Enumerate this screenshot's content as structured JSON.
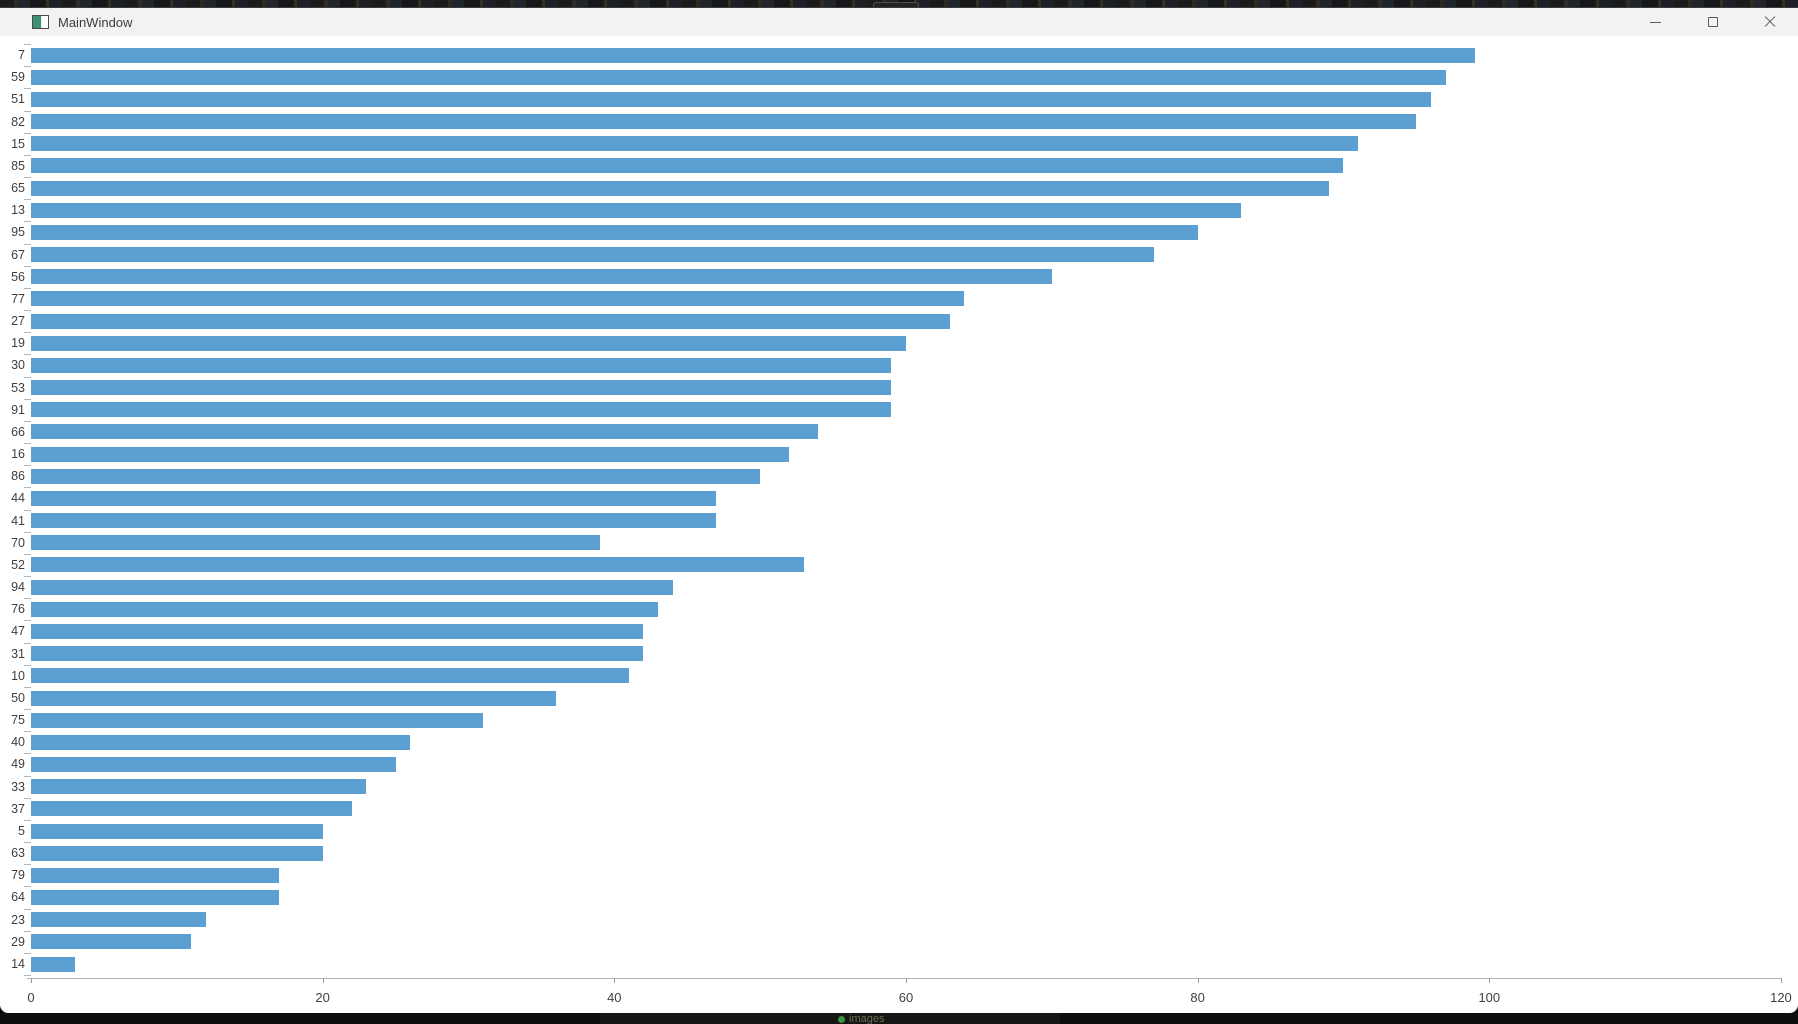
{
  "window": {
    "title": "MainWindow",
    "controls": {
      "minimize": "minimize",
      "maximize": "maximize",
      "close": "close"
    }
  },
  "taskbar": {
    "label": "images"
  },
  "colors": {
    "bar": "#5B9FD3",
    "titlebar_bg": "#F2F2F2",
    "chart_bg": "#FFFFFF",
    "axis": "#B5B5B5",
    "tick_label": "#3F3F3F"
  },
  "chart_data": {
    "type": "bar",
    "orientation": "horizontal",
    "title": "",
    "xlabel": "",
    "ylabel": "",
    "grid": false,
    "legend": null,
    "xlim": [
      0,
      120
    ],
    "x_ticks": [
      0,
      20,
      40,
      60,
      80,
      100,
      120
    ],
    "categories": [
      "7",
      "59",
      "51",
      "82",
      "15",
      "85",
      "65",
      "13",
      "95",
      "67",
      "56",
      "77",
      "27",
      "19",
      "30",
      "53",
      "91",
      "66",
      "16",
      "86",
      "44",
      "41",
      "70",
      "52",
      "94",
      "76",
      "47",
      "31",
      "10",
      "50",
      "75",
      "40",
      "49",
      "33",
      "37",
      "5",
      "63",
      "79",
      "64",
      "23",
      "29",
      "14"
    ],
    "values": [
      99,
      97,
      96,
      95,
      91,
      90,
      89,
      83,
      80,
      77,
      70,
      64,
      63,
      60,
      59,
      59,
      59,
      54,
      52,
      50,
      47,
      47,
      39,
      53,
      44,
      43,
      42,
      42,
      41,
      36,
      31,
      26,
      25,
      23,
      22,
      20,
      20,
      17,
      17,
      12,
      11,
      3
    ]
  }
}
